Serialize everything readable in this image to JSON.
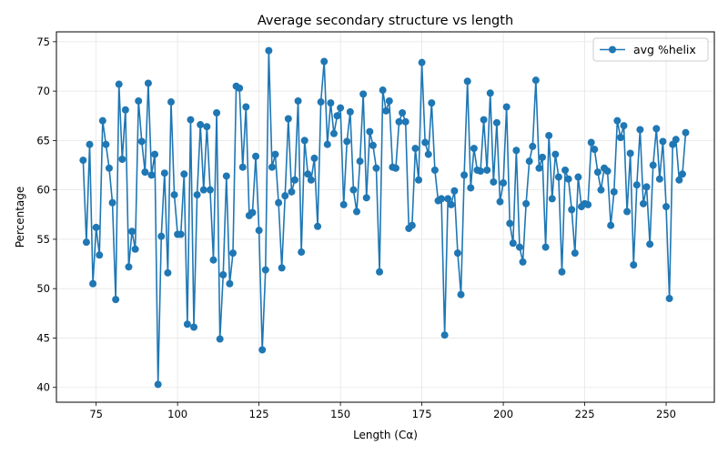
{
  "chart_data": {
    "type": "line",
    "title": "Average secondary structure vs length",
    "xlabel": "Length (Cα)",
    "ylabel": "Percentage",
    "xlim": [
      62.8,
      264.8
    ],
    "ylim": [
      38.5,
      76
    ],
    "xticks": [
      75,
      100,
      125,
      150,
      175,
      200,
      225,
      250
    ],
    "yticks": [
      40,
      45,
      50,
      55,
      60,
      65,
      70,
      75
    ],
    "grid": true,
    "legend_position": "top-right",
    "series": [
      {
        "name": "avg %helix",
        "color": "#1f77b4",
        "marker": "circle",
        "x": [
          71,
          72,
          73,
          74,
          75,
          76,
          77,
          78,
          79,
          80,
          81,
          82,
          83,
          84,
          85,
          86,
          87,
          88,
          89,
          90,
          91,
          92,
          93,
          94,
          95,
          96,
          97,
          98,
          99,
          100,
          101,
          102,
          103,
          104,
          105,
          106,
          107,
          108,
          109,
          110,
          111,
          112,
          113,
          114,
          115,
          116,
          117,
          118,
          119,
          120,
          121,
          122,
          123,
          124,
          125,
          126,
          127,
          128,
          129,
          130,
          131,
          132,
          133,
          134,
          135,
          136,
          137,
          138,
          139,
          140,
          141,
          142,
          143,
          144,
          145,
          146,
          147,
          148,
          149,
          150,
          151,
          152,
          153,
          154,
          155,
          156,
          157,
          158,
          159,
          160,
          161,
          162,
          163,
          164,
          165,
          166,
          167,
          168,
          169,
          170,
          171,
          172,
          173,
          174,
          175,
          176,
          177,
          178,
          179,
          180,
          181,
          182,
          183,
          184,
          185,
          186,
          187,
          188,
          189,
          190,
          191,
          192,
          193,
          194,
          195,
          196,
          197,
          198,
          199,
          200,
          201,
          202,
          203,
          204,
          205,
          206,
          207,
          208,
          209,
          210,
          211,
          212,
          213,
          214,
          215,
          216,
          217,
          218,
          219,
          220,
          221,
          222,
          223,
          224,
          225,
          226,
          227,
          228,
          229,
          230,
          231,
          232,
          233,
          234,
          235,
          236,
          237,
          238,
          239,
          240,
          241,
          242,
          243,
          244,
          245,
          246,
          247,
          248,
          249,
          250,
          251,
          252,
          253,
          254,
          255,
          256
        ],
        "y": [
          63.0,
          54.7,
          64.6,
          50.5,
          56.2,
          53.4,
          67.0,
          64.6,
          62.2,
          58.7,
          48.9,
          70.7,
          63.1,
          68.1,
          52.2,
          55.8,
          54.0,
          69.0,
          64.9,
          61.8,
          70.8,
          61.5,
          63.6,
          40.3,
          55.3,
          61.7,
          51.6,
          68.9,
          59.5,
          55.5,
          55.5,
          61.6,
          46.4,
          67.1,
          46.1,
          59.5,
          66.6,
          60.0,
          66.4,
          60.0,
          52.9,
          67.8,
          44.9,
          51.4,
          61.4,
          50.5,
          53.6,
          70.5,
          70.3,
          62.3,
          68.4,
          57.4,
          57.7,
          63.4,
          55.9,
          43.8,
          51.9,
          74.1,
          62.3,
          63.6,
          58.7,
          52.1,
          59.4,
          67.2,
          59.8,
          61.0,
          69.0,
          53.7,
          65.0,
          61.6,
          61.0,
          63.2,
          56.3,
          68.9,
          73.0,
          64.6,
          68.8,
          65.7,
          67.5,
          68.3,
          58.5,
          64.9,
          67.9,
          60.0,
          57.8,
          62.9,
          69.7,
          59.2,
          65.9,
          64.5,
          62.2,
          51.7,
          70.1,
          68.0,
          69.0,
          62.3,
          62.2,
          66.9,
          67.8,
          66.9,
          56.1,
          56.4,
          64.2,
          61.0,
          72.9,
          64.8,
          63.6,
          68.8,
          62.0,
          58.9,
          59.1,
          45.3,
          59.1,
          58.5,
          59.9,
          53.6,
          49.4,
          61.5,
          71.0,
          60.2,
          64.2,
          62.0,
          61.9,
          67.1,
          62.0,
          69.8,
          60.8,
          66.8,
          58.8,
          60.7,
          68.4,
          56.6,
          54.6,
          64.0,
          54.2,
          52.7,
          58.6,
          62.9,
          64.4,
          71.1,
          62.2,
          63.3,
          54.2,
          65.5,
          59.1,
          63.6,
          61.3,
          51.7,
          62.0,
          61.1,
          58.0,
          53.6,
          61.3,
          58.3,
          58.6,
          58.5,
          64.8,
          64.1,
          61.8,
          60.0,
          62.2,
          61.9,
          56.4,
          59.8,
          67.0,
          65.3,
          66.5,
          57.8,
          63.7,
          52.4,
          60.5,
          66.1,
          58.6,
          60.3,
          54.5,
          62.5,
          66.2,
          61.1,
          64.9,
          58.3,
          49.0,
          64.6,
          65.1,
          61.0,
          61.6,
          65.8
        ]
      }
    ]
  }
}
